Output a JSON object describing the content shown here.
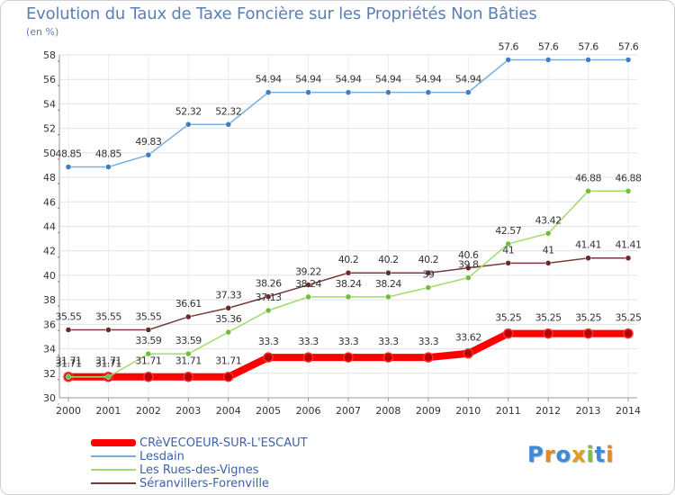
{
  "title": "Evolution du Taux de Taxe Foncière sur les Propriétés Non Bâties",
  "unit_label": "(en %)",
  "logo": {
    "text": "Proxiti",
    "colors": [
      "#3a8ad6",
      "#e08a2a",
      "#3a8ad6",
      "#e0a020",
      "#7ac043",
      "#3a8ad6",
      "#e08a2a"
    ]
  },
  "chart_data": {
    "type": "line",
    "title": "Evolution du Taux de Taxe Foncière sur les Propriétés Non Bâties",
    "ylabel": "(en %)",
    "xlabel": "",
    "x": [
      "2000",
      "2001",
      "2002",
      "2003",
      "2004",
      "2005",
      "2006",
      "2007",
      "2008",
      "2009",
      "2010",
      "2011",
      "2012",
      "2013",
      "2014"
    ],
    "ylim": [
      30,
      58
    ],
    "yticks": [
      30,
      32,
      34,
      36,
      38,
      40,
      42,
      44,
      46,
      48,
      50,
      52,
      54,
      56,
      58
    ],
    "grid": true,
    "legend_position": "bottom-left",
    "series": [
      {
        "name": "CREVECOEUR-SUR-L'ESCAUT",
        "color": "#ff0000",
        "marker": "#e00000",
        "values": [
          31.71,
          31.71,
          31.71,
          31.71,
          31.71,
          33.3,
          33.3,
          33.3,
          33.3,
          33.3,
          33.62,
          35.25,
          35.25,
          35.25,
          35.25
        ],
        "labels": [
          "31.71",
          "31.71",
          "31.71",
          "31.71",
          "31.71",
          "33.3",
          "33.3",
          "33.3",
          "33.3",
          "33.3",
          "33.62",
          "35.25",
          "35.25",
          "35.25",
          "35.25"
        ]
      },
      {
        "name": "Lesdain",
        "color": "#7aaedc",
        "marker": "#3f7fbf",
        "values": [
          48.85,
          48.85,
          49.83,
          52.32,
          52.32,
          54.94,
          54.94,
          54.94,
          54.94,
          54.94,
          54.94,
          57.6,
          57.6,
          57.6,
          57.6
        ],
        "labels": [
          "48.85",
          "48.85",
          "49.83",
          "52.32",
          "52.32",
          "54.94",
          "54.94",
          "54.94",
          "54.94",
          "54.94",
          "54.94",
          "57.6",
          "57.6",
          "57.6",
          "57.6"
        ]
      },
      {
        "name": "Les Rues-des-Vignes",
        "color": "#9fdc6a",
        "marker": "#6fbf3a",
        "values": [
          31.71,
          31.71,
          33.59,
          33.59,
          35.36,
          37.13,
          38.24,
          38.24,
          38.24,
          39,
          39.8,
          42.57,
          43.42,
          46.88,
          46.88
        ],
        "labels": [
          "31.71",
          "31.71",
          "33.59",
          "33.59",
          "35.36",
          "37.13",
          "38.24",
          "38.24",
          "38.24",
          "39",
          "39.8",
          "42.57",
          "43.42",
          "46.88",
          "46.88"
        ]
      },
      {
        "name": "Séranvillers-Forenville",
        "color": "#7a3a3a",
        "marker": "#6a2a2a",
        "values": [
          35.55,
          35.55,
          35.55,
          36.61,
          37.33,
          38.26,
          39.22,
          40.2,
          40.2,
          40.2,
          40.6,
          41,
          41,
          41.41,
          41.41
        ],
        "labels": [
          "35.55",
          "35.55",
          "35.55",
          "36.61",
          "37.33",
          "38.26",
          "39.22",
          "40.2",
          "40.2",
          "40.2",
          "40.6",
          "41",
          "41",
          "41.41",
          "41.41"
        ]
      }
    ],
    "legend": [
      "CRèVECOEUR-SUR-L'ESCAUT",
      "Lesdain",
      "Les Rues-des-Vignes",
      "Séranvillers-Forenville"
    ]
  }
}
